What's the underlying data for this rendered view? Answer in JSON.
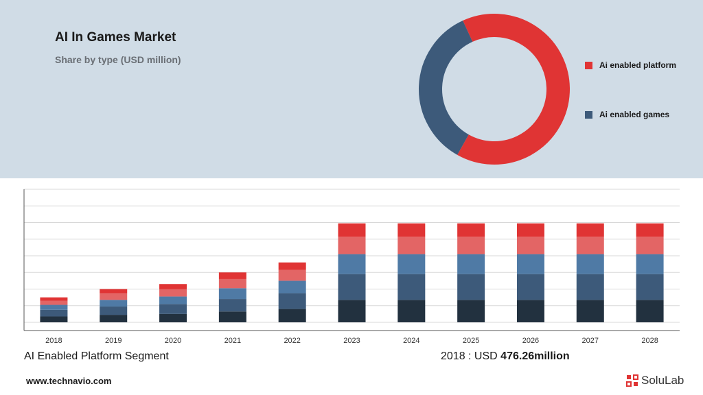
{
  "header": {
    "title": "AI In Games Market",
    "subtitle": "Share by type (USD million)"
  },
  "footer": {
    "segment_label": "AI Enabled Platform Segment",
    "value_prefix": "2018 : USD",
    "value_amount": "476.26million",
    "website": "www.technavio.com",
    "brand": "SoluLab"
  },
  "colors": {
    "platform_red": "#e03434",
    "games_blue": "#3d5a7a"
  },
  "chart_data": [
    {
      "type": "pie",
      "title": "Share by type (USD million)",
      "donut": true,
      "legend_position": "right",
      "categories": [
        "Ai enabled platform",
        "Ai enabled games"
      ],
      "values": [
        65,
        35
      ],
      "colors": [
        "#e03434",
        "#3d5a7a"
      ]
    },
    {
      "type": "bar",
      "stacked": true,
      "grid": true,
      "legend": "none",
      "categories": [
        "2018",
        "2019",
        "2020",
        "2021",
        "2022",
        "2023",
        "2024",
        "2025",
        "2026",
        "2027",
        "2028"
      ],
      "ylim": [
        0,
        8
      ],
      "series": [
        {
          "values": [
            0.35,
            0.45,
            0.5,
            0.65,
            0.8,
            1.35,
            1.35,
            1.35,
            1.35,
            1.35,
            1.35
          ],
          "color": "#22313f"
        },
        {
          "values": [
            0.4,
            0.5,
            0.6,
            0.75,
            0.95,
            1.55,
            1.55,
            1.55,
            1.55,
            1.55,
            1.55
          ],
          "color": "#3d5a7a"
        },
        {
          "values": [
            0.3,
            0.4,
            0.45,
            0.65,
            0.75,
            1.2,
            1.2,
            1.2,
            1.2,
            1.2,
            1.2
          ],
          "color": "#4f7aa5"
        },
        {
          "values": [
            0.25,
            0.4,
            0.45,
            0.55,
            0.65,
            1.05,
            1.05,
            1.05,
            1.05,
            1.05,
            1.05
          ],
          "color": "#e36565"
        },
        {
          "values": [
            0.2,
            0.25,
            0.3,
            0.4,
            0.45,
            0.8,
            0.8,
            0.8,
            0.8,
            0.8,
            0.8
          ],
          "color": "#e03434"
        }
      ]
    }
  ]
}
